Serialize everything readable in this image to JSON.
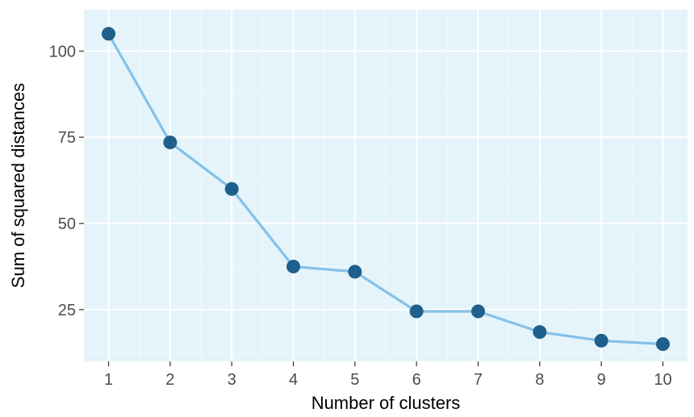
{
  "chart_data": {
    "type": "line",
    "title": "",
    "xlabel": "Number of clusters",
    "ylabel": "Sum of squared distances",
    "x": [
      1,
      2,
      3,
      4,
      5,
      6,
      7,
      8,
      9,
      10
    ],
    "series": [
      {
        "values": [
          105,
          73.5,
          60,
          37.5,
          36,
          24.5,
          24.5,
          18.5,
          16,
          15
        ]
      }
    ],
    "xlim": [
      0.6,
      10.4
    ],
    "ylim": [
      10,
      112
    ],
    "xticks": [
      "1",
      "2",
      "3",
      "4",
      "5",
      "6",
      "7",
      "8",
      "9",
      "10"
    ],
    "yticks": [
      "25",
      "50",
      "75",
      "100"
    ],
    "grid": true,
    "legend": "none",
    "colors": {
      "panel_background": "#e5f4fa",
      "grid_major": "#ffffff",
      "grid_minor": "#f2fafd",
      "line": "#85c1e9",
      "point": "#1f5f8b"
    }
  }
}
